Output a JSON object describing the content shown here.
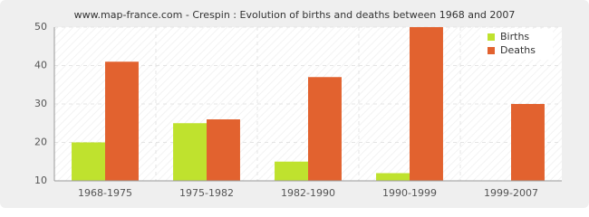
{
  "chart_data": {
    "type": "bar",
    "title": "www.map-france.com - Crespin : Evolution of births and deaths between 1968 and 2007",
    "categories": [
      "1968-1975",
      "1975-1982",
      "1982-1990",
      "1990-1999",
      "1999-2007"
    ],
    "series": [
      {
        "name": "Births",
        "color": "#bfe22e",
        "values": [
          20,
          25,
          15,
          12,
          10
        ]
      },
      {
        "name": "Deaths",
        "color": "#e2622f",
        "values": [
          41,
          26,
          37,
          50,
          30
        ]
      }
    ],
    "ylim": [
      10,
      50
    ],
    "yticks": [
      10,
      20,
      30,
      40,
      50
    ],
    "grid": true,
    "legend": "top-right"
  }
}
